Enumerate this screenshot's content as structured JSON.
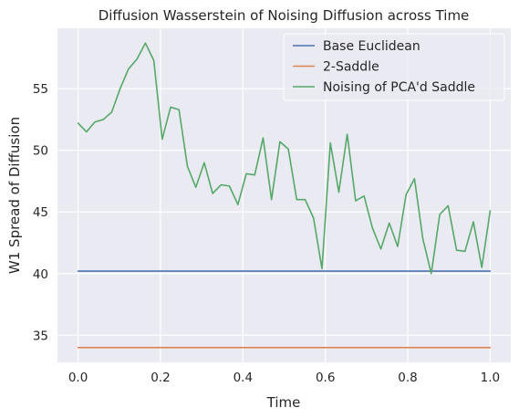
{
  "chart_data": {
    "type": "line",
    "title": "Diffusion Wasserstein of Noising Diffusion across Time",
    "xlabel": "Time",
    "ylabel": "W1 Spread of Diffusion",
    "xlim": [
      -0.05,
      1.05
    ],
    "ylim": [
      32.8,
      59.9
    ],
    "xticks": [
      0.0,
      0.2,
      0.4,
      0.6,
      0.8,
      1.0
    ],
    "xtick_labels": [
      "0.0",
      "0.2",
      "0.4",
      "0.6",
      "0.8",
      "1.0"
    ],
    "yticks": [
      35,
      40,
      45,
      50,
      55
    ],
    "ytick_labels": [
      "35",
      "40",
      "45",
      "50",
      "55"
    ],
    "grid": true,
    "legend_position": "top-right",
    "series": [
      {
        "name": "Base Euclidean",
        "color": "#4c72b0",
        "x": [
          0.0,
          1.0
        ],
        "y": [
          40.2,
          40.2
        ]
      },
      {
        "name": "2-Saddle",
        "color": "#dd8452",
        "x": [
          0.0,
          1.0
        ],
        "y": [
          34.0,
          34.0
        ]
      },
      {
        "name": "Noising of PCA'd Saddle",
        "color": "#55a868",
        "x": [
          0.0,
          0.0204,
          0.0408,
          0.0612,
          0.0816,
          0.102,
          0.1224,
          0.1429,
          0.1633,
          0.1837,
          0.2041,
          0.2245,
          0.2449,
          0.2653,
          0.2857,
          0.3061,
          0.3265,
          0.3469,
          0.3673,
          0.3878,
          0.4082,
          0.4286,
          0.449,
          0.4694,
          0.4898,
          0.5102,
          0.5306,
          0.551,
          0.5714,
          0.5918,
          0.6122,
          0.6327,
          0.6531,
          0.6735,
          0.6939,
          0.7143,
          0.7347,
          0.7551,
          0.7755,
          0.7959,
          0.8163,
          0.8367,
          0.8571,
          0.8776,
          0.898,
          0.9184,
          0.9388,
          0.9592,
          0.9796,
          1.0
        ],
        "y": [
          52.2,
          51.5,
          52.3,
          52.5,
          53.1,
          55.0,
          56.6,
          57.4,
          58.7,
          57.3,
          50.9,
          53.5,
          53.3,
          48.7,
          47.0,
          49.0,
          46.5,
          47.2,
          47.1,
          45.6,
          48.1,
          48.0,
          51.0,
          46.0,
          50.7,
          50.1,
          46.0,
          46.0,
          44.5,
          40.4,
          50.6,
          46.6,
          51.3,
          45.9,
          46.3,
          43.7,
          42.0,
          44.1,
          42.2,
          46.4,
          47.7,
          42.8,
          40.0,
          44.8,
          45.5,
          41.9,
          41.8,
          44.2,
          40.5,
          45.1
        ]
      }
    ]
  }
}
